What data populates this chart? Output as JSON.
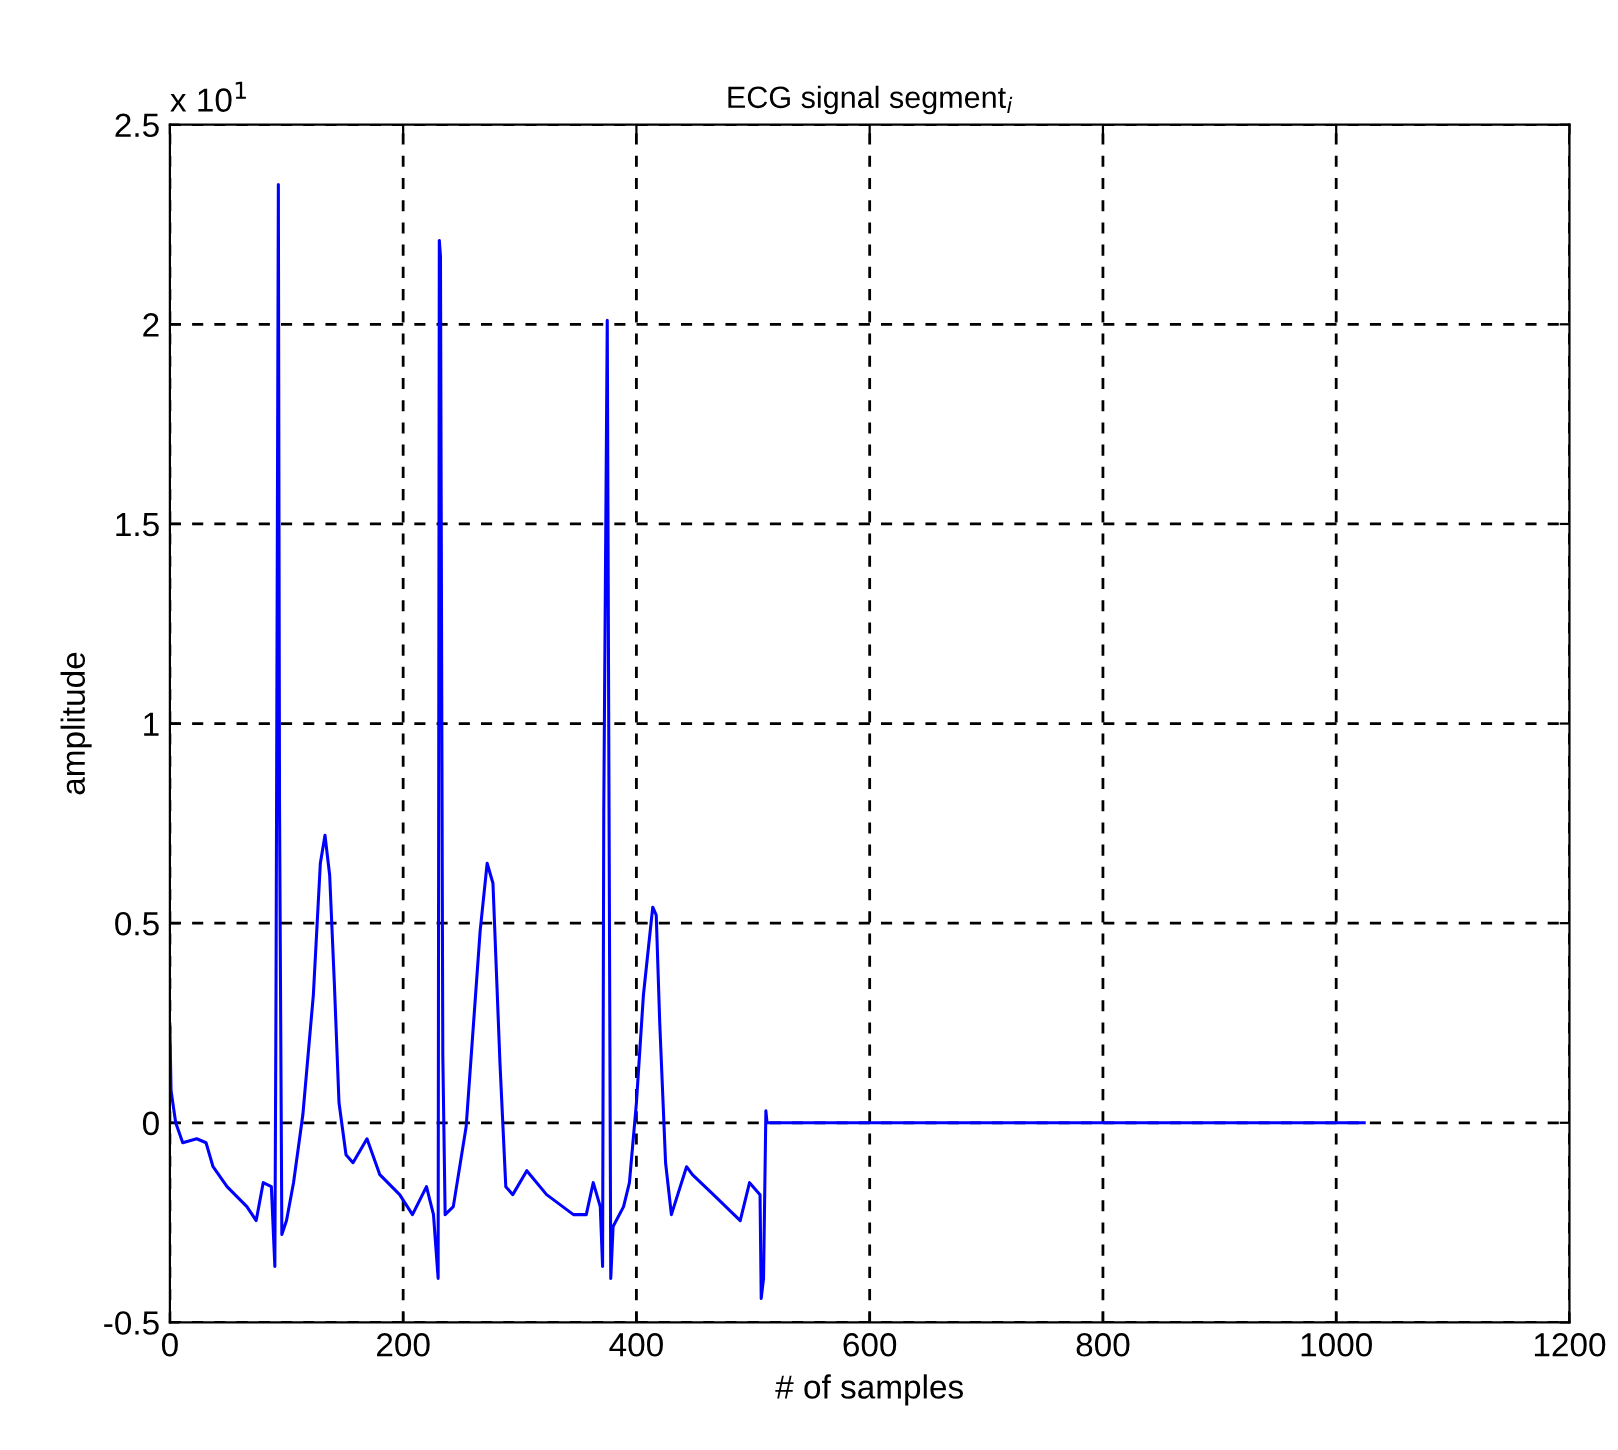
{
  "chart_data": {
    "type": "line",
    "title": "ECG signal segment$_{i}$",
    "xlabel": "# of samples",
    "ylabel": "amplitude",
    "annotations": [
      "x 10$^{1}$"
    ],
    "xlim": [
      0,
      1200
    ],
    "xticks": [
      0,
      200,
      400,
      600,
      800,
      1000,
      1200
    ],
    "ylim": [
      -0.5,
      2.5
    ],
    "yticks": [
      -0.5,
      0,
      0.5,
      1,
      1.5,
      2,
      2.5
    ],
    "grid": true,
    "line_style": "solid",
    "marker": "none",
    "series": [
      {
        "color": "#0000ff",
        "x": [
          0,
          1,
          5,
          11,
          23,
          31,
          37,
          49,
          66,
          74,
          80,
          87,
          90,
          91,
          93,
          94,
          96,
          100,
          106,
          114,
          123,
          129,
          133,
          137,
          141,
          145,
          151,
          157,
          169,
          180,
          197,
          208,
          220,
          226,
          230,
          231,
          232,
          234,
          236,
          243,
          254,
          266,
          272,
          277,
          283,
          288,
          294,
          306,
          323,
          346,
          357,
          363,
          369,
          371,
          372,
          375,
          378,
          380,
          389,
          394,
          400,
          406,
          414,
          417,
          420,
          425,
          430,
          443,
          448,
          466,
          489,
          497,
          506,
          507,
          509,
          511,
          512,
          1024
        ],
        "values": [
          0.24,
          0.08,
          0.0,
          -0.05,
          -0.04,
          -0.05,
          -0.11,
          -0.16,
          -0.21,
          -0.245,
          -0.15,
          -0.16,
          -0.36,
          0.33,
          2.35,
          0.8,
          -0.28,
          -0.245,
          -0.15,
          0.02,
          0.32,
          0.65,
          0.72,
          0.62,
          0.35,
          0.05,
          -0.08,
          -0.1,
          -0.04,
          -0.13,
          -0.18,
          -0.23,
          -0.16,
          -0.23,
          -0.39,
          2.21,
          2.17,
          0.17,
          -0.23,
          -0.21,
          -0.01,
          0.48,
          0.65,
          0.6,
          0.15,
          -0.16,
          -0.18,
          -0.12,
          -0.18,
          -0.23,
          -0.23,
          -0.15,
          -0.21,
          -0.36,
          0.78,
          2.01,
          -0.39,
          -0.26,
          -0.21,
          -0.15,
          0.05,
          0.32,
          0.54,
          0.52,
          0.25,
          -0.1,
          -0.23,
          -0.11,
          -0.13,
          -0.18,
          -0.245,
          -0.15,
          -0.18,
          -0.44,
          -0.39,
          0.03,
          0.0,
          0.0
        ]
      }
    ]
  }
}
